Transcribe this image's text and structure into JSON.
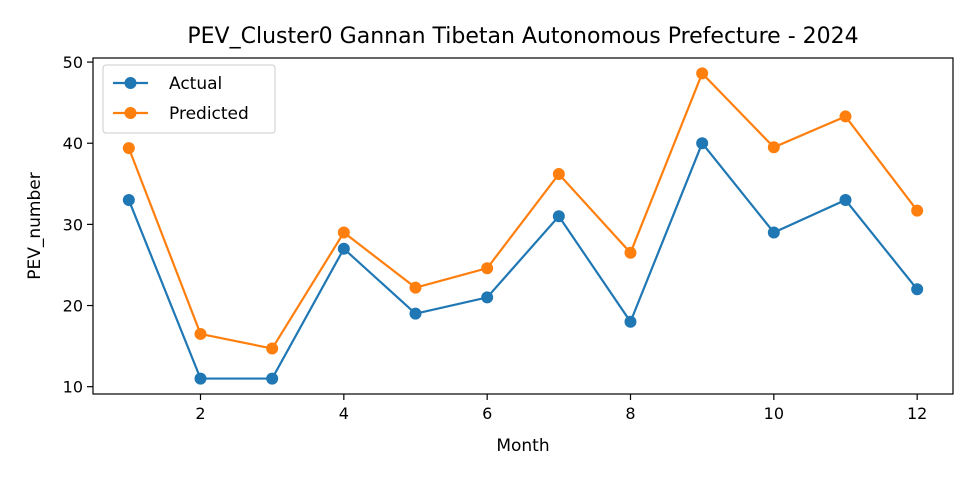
{
  "chart_data": {
    "type": "line",
    "title": "PEV_Cluster0 Gannan Tibetan Autonomous Prefecture - 2024",
    "xlabel": "Month",
    "ylabel": "PEV_number",
    "x": [
      1,
      2,
      3,
      4,
      5,
      6,
      7,
      8,
      9,
      10,
      11,
      12
    ],
    "xticks": [
      2,
      4,
      6,
      8,
      10,
      12
    ],
    "yticks": [
      10,
      20,
      30,
      40,
      50
    ],
    "xlim": [
      0.5,
      12.5
    ],
    "ylim": [
      9.1,
      50.5
    ],
    "grid": false,
    "legend_position": "top-left",
    "series": [
      {
        "name": "Actual",
        "color": "#1f77b4",
        "values": [
          33,
          11,
          11,
          27,
          19,
          21,
          31,
          18,
          40,
          29,
          33,
          22
        ]
      },
      {
        "name": "Predicted",
        "color": "#ff7f0e",
        "values": [
          39.4,
          16.5,
          14.7,
          29.0,
          22.2,
          24.6,
          36.2,
          26.5,
          48.6,
          39.5,
          43.3,
          31.7
        ]
      }
    ]
  }
}
